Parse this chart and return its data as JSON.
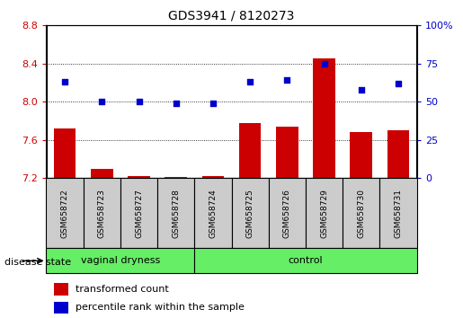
{
  "title": "GDS3941 / 8120273",
  "samples": [
    "GSM658722",
    "GSM658723",
    "GSM658727",
    "GSM658728",
    "GSM658724",
    "GSM658725",
    "GSM658726",
    "GSM658729",
    "GSM658730",
    "GSM658731"
  ],
  "transformed_count": [
    7.72,
    7.3,
    7.22,
    7.21,
    7.22,
    7.78,
    7.74,
    8.45,
    7.68,
    7.7
  ],
  "percentile_rank": [
    63,
    50,
    50,
    49,
    49,
    63,
    64,
    75,
    58,
    62
  ],
  "bar_color": "#cc0000",
  "dot_color": "#0000cc",
  "ylim_left": [
    7.2,
    8.8
  ],
  "ylim_right": [
    0,
    100
  ],
  "yticks_left": [
    7.2,
    7.6,
    8.0,
    8.4,
    8.8
  ],
  "yticks_right": [
    0,
    25,
    50,
    75,
    100
  ],
  "group_bg_color": "#66ee66",
  "sample_box_color": "#cccccc",
  "bar_width": 0.6,
  "baseline": 7.2,
  "groups_info": [
    {
      "start": 0,
      "end": 3,
      "label": "vaginal dryness"
    },
    {
      "start": 4,
      "end": 9,
      "label": "control"
    }
  ],
  "n_vaginal": 4,
  "n_control": 6
}
